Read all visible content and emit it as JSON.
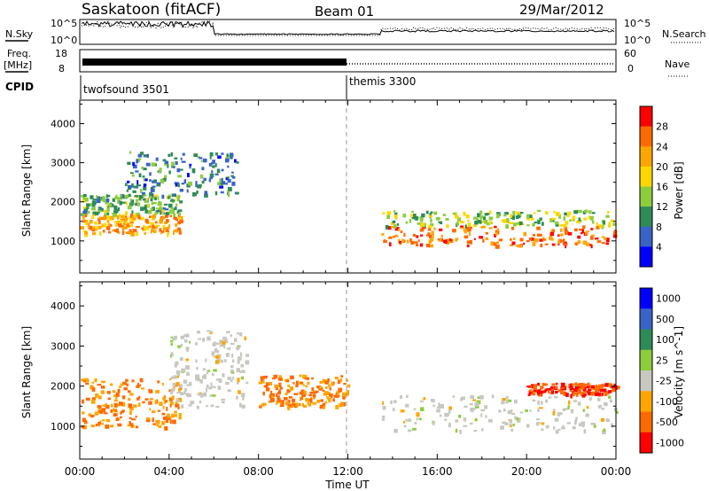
{
  "header": {
    "station": "Saskatoon (fitACF)",
    "beam": "Beam 01",
    "date": "29/Mar/2012"
  },
  "top_panels": {
    "nsky_label": "N.Sky",
    "nsky_ticks": [
      "10^5",
      "10^0"
    ],
    "nsearch_label": "N.Search",
    "nsearch_ticks": [
      "10^5",
      "10^0"
    ],
    "freq_label": "Freq.",
    "freq_unit": "[MHz]",
    "freq_ticks": [
      "18",
      "8"
    ],
    "nave_label": "Nave",
    "nave_ticks": [
      "60",
      "0"
    ],
    "cpid_label": "CPID",
    "cpid_entries": [
      {
        "name": "twofsound 3501",
        "start_hour": 0
      },
      {
        "name": "themis 3300",
        "start_hour": 12
      }
    ]
  },
  "axes": {
    "x_label": "Time UT",
    "x_ticks": [
      "00:00",
      "04:00",
      "08:00",
      "12:00",
      "16:00",
      "20:00",
      "00:00"
    ],
    "y_label": "Slant Range [km]",
    "y_ticks": [
      "1000",
      "2000",
      "3000",
      "4000"
    ]
  },
  "chart_data": [
    {
      "type": "heatmap",
      "title": "",
      "xlabel": "Time UT",
      "ylabel": "Slant Range [km]",
      "xlim": [
        0,
        24
      ],
      "ylim": [
        180,
        4600
      ],
      "colorbar_label": "Power [dB]",
      "colorbar_ticks": [
        "28",
        "24",
        "20",
        "16",
        "12",
        "8",
        "4"
      ],
      "colorbar_colors": [
        "#ff0000",
        "#ff6a00",
        "#ffa500",
        "#ffd700",
        "#8ccd3c",
        "#2e8b57",
        "#3a63c8",
        "#0000ff"
      ],
      "regions": [
        {
          "t0": 0,
          "t1": 4.5,
          "r0": 1200,
          "r1": 1700,
          "value": 22
        },
        {
          "t0": 0,
          "t1": 4.5,
          "r0": 1700,
          "r1": 2200,
          "value": 12
        },
        {
          "t0": 2,
          "t1": 7,
          "r0": 2200,
          "r1": 3300,
          "value": 8
        },
        {
          "t0": 13.5,
          "t1": 24,
          "r0": 900,
          "r1": 1400,
          "value": 26
        },
        {
          "t0": 13.5,
          "t1": 24,
          "r0": 1400,
          "r1": 1800,
          "value": 14
        }
      ]
    },
    {
      "type": "heatmap",
      "title": "",
      "xlabel": "Time UT",
      "ylabel": "Slant Range [km]",
      "xlim": [
        0,
        24
      ],
      "ylim": [
        180,
        4600
      ],
      "colorbar_label": "Velocity [m s^-1]",
      "colorbar_ticks": [
        "1000",
        "500",
        "100",
        "25",
        "-25",
        "-100",
        "-500",
        "-1000"
      ],
      "colorbar_colors": [
        "#0000ff",
        "#3a63c8",
        "#2e8b57",
        "#8ccd3c",
        "#c8c8c0",
        "#ffa500",
        "#ff6a00",
        "#ff0000"
      ],
      "regions": [
        {
          "t0": 0,
          "t1": 4.5,
          "r0": 1000,
          "r1": 2200,
          "value": -100
        },
        {
          "t0": 4,
          "t1": 7.5,
          "r0": 1500,
          "r1": 3400,
          "value": 0
        },
        {
          "t0": 8,
          "t1": 12,
          "r0": 1500,
          "r1": 2300,
          "value": -100
        },
        {
          "t0": 13.5,
          "t1": 24,
          "r0": 900,
          "r1": 1800,
          "value": 0
        },
        {
          "t0": 20,
          "t1": 24,
          "r0": 1800,
          "r1": 2100,
          "value": -500
        }
      ]
    }
  ]
}
